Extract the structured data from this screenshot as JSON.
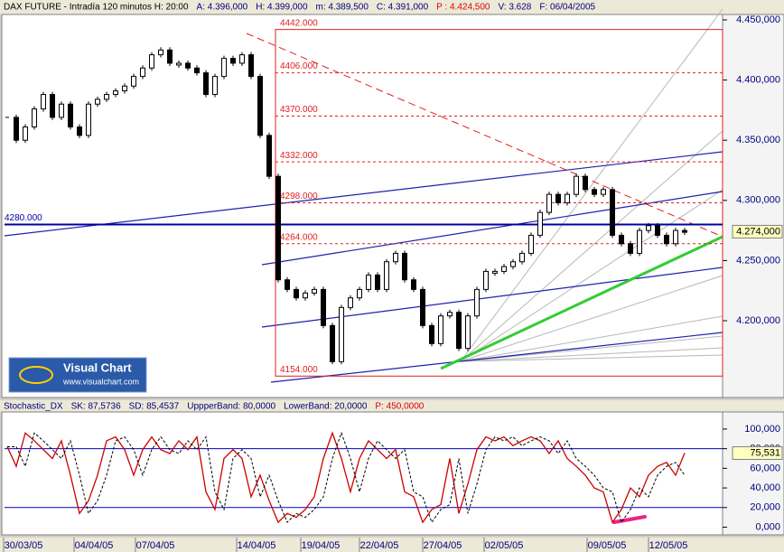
{
  "chart_data": [
    {
      "type": "candlestick",
      "header": [
        {
          "text": "DAX FUTURE - Intradía 120 minutos H: 20:00",
          "color": "#000000"
        },
        {
          "text": "A: 4.396,000",
          "color": "#000080"
        },
        {
          "text": "H: 4.399,000",
          "color": "#000080"
        },
        {
          "text": "m: 4.389,500",
          "color": "#000080"
        },
        {
          "text": "C: 4.391,000",
          "color": "#000080"
        },
        {
          "text": "P : 4.424,500",
          "color": "#e00000"
        },
        {
          "text": "V: 3.628",
          "color": "#000080"
        },
        {
          "text": "F: 06/04/2005",
          "color": "#000080"
        }
      ],
      "color": "#000000",
      "values": [
        4369000,
        4350000,
        4361000,
        4376000,
        4388000,
        4369000,
        4380000,
        4361000,
        4354000,
        4380000,
        4384000,
        4388000,
        4391000,
        4395000,
        4403000,
        4410000,
        4421000,
        4425000,
        4414000,
        4414000,
        4410000,
        4406000,
        4388000,
        4403000,
        4418000,
        4414000,
        4421000,
        4403000,
        4354000,
        4320000,
        4234000,
        4226000,
        4219000,
        4223000,
        4226000,
        4196000,
        4166000,
        4211000,
        4219000,
        4226000,
        4238000,
        4226000,
        4249000,
        4256000,
        4234000,
        4226000,
        4196000,
        4181000,
        4204000,
        4207000,
        4177000,
        4204000,
        4226000,
        4241000,
        4241000,
        4245000,
        4249000,
        4256000,
        4271000,
        4290000,
        4305000,
        4298000,
        4305000,
        4320000,
        4309000,
        4305000,
        4309000,
        4271000,
        4264000,
        4256000,
        4275000,
        4279000,
        4271000,
        4264000,
        4275000,
        4274000
      ],
      "ylim": [
        4136200,
        4454500
      ],
      "yticks": [
        {
          "value": 4450000,
          "label": "4.450,000"
        },
        {
          "value": 4400000,
          "label": "4.400,000"
        },
        {
          "value": 4350000,
          "label": "4.350,000"
        },
        {
          "value": 4300000,
          "label": "4.300,000"
        },
        {
          "value": 4250000,
          "label": "4.250,000"
        },
        {
          "value": 4200000,
          "label": "4.200,000"
        }
      ],
      "levels": [
        {
          "value": 4442000,
          "label": "4442.000"
        },
        {
          "value": 4406000,
          "label": "4406.000"
        },
        {
          "value": 4370000,
          "label": "4370.000"
        },
        {
          "value": 4332000,
          "label": "4332.000"
        },
        {
          "value": 4298000,
          "label": "4298.000"
        },
        {
          "value": 4264000,
          "label": "4264.000"
        },
        {
          "value": 4154000,
          "label": "4154.000"
        }
      ],
      "level_color": "#e02020",
      "hline": {
        "value": 4280000,
        "label": "4280.000",
        "color": "#0000a0"
      },
      "last": {
        "value": 4274000,
        "label": "4.274,000"
      },
      "logo": [
        "Visual Chart",
        "www.visualchart.com"
      ]
    },
    {
      "type": "line",
      "header": [
        {
          "text": "Stochastic_DX",
          "color": "#000080"
        },
        {
          "text": "SK: 87,5736",
          "color": "#000080"
        },
        {
          "text": "SD: 85,4537",
          "color": "#000080"
        },
        {
          "text": "UppperBand: 80,0000",
          "color": "#000080"
        },
        {
          "text": "LowerBand: 20,0000",
          "color": "#000080"
        },
        {
          "text": "P: 450,0000",
          "color": "#e00000"
        }
      ],
      "series": [
        {
          "name": "SK",
          "color": "#cc0000",
          "values": [
            82,
            62,
            96,
            88,
            79,
            70,
            88,
            53,
            14,
            27,
            53,
            88,
            92,
            79,
            53,
            79,
            92,
            79,
            75,
            88,
            79,
            92,
            36,
            18,
            70,
            79,
            70,
            31,
            53,
            27,
            5,
            14,
            10,
            18,
            31,
            70,
            96,
            70,
            36,
            70,
            88,
            79,
            70,
            79,
            36,
            31,
            5,
            18,
            23,
            70,
            14,
            44,
            79,
            92,
            88,
            92,
            83,
            88,
            92,
            88,
            75,
            88,
            70,
            62,
            53,
            40,
            36,
            5,
            18,
            40,
            31,
            53,
            62,
            66,
            53,
            75.5
          ]
        },
        {
          "name": "SD",
          "color": "#000000",
          "values": [
            82,
            82,
            62,
            96,
            88,
            79,
            70,
            88,
            53,
            14,
            27,
            53,
            88,
            92,
            79,
            53,
            79,
            92,
            79,
            75,
            88,
            79,
            92,
            36,
            18,
            70,
            79,
            70,
            31,
            53,
            27,
            5,
            14,
            10,
            18,
            31,
            70,
            96,
            70,
            36,
            70,
            88,
            79,
            70,
            79,
            36,
            31,
            5,
            18,
            23,
            70,
            14,
            44,
            79,
            92,
            88,
            92,
            83,
            88,
            92,
            88,
            75,
            88,
            70,
            62,
            53,
            40,
            36,
            5,
            18,
            40,
            31,
            53,
            62,
            66,
            53
          ]
        }
      ],
      "ylim": [
        -7.8,
        117.4
      ],
      "yticks": [
        {
          "value": 100,
          "label": "100,000"
        },
        {
          "value": 80,
          "label": "80,000"
        },
        {
          "value": 60,
          "label": "60,000"
        },
        {
          "value": 40,
          "label": "40,000"
        },
        {
          "value": 20,
          "label": "20,000"
        },
        {
          "value": 0,
          "label": "0,000"
        }
      ],
      "bands": [
        80,
        20
      ],
      "band_color": "#0000c0",
      "last": {
        "value": 75.5,
        "label": "75,531"
      },
      "xticks": [
        {
          "value": 1.8,
          "label": "30/03/05"
        },
        {
          "value": 9.6,
          "label": "04/04/05"
        },
        {
          "value": 16.4,
          "label": "07/04/05"
        },
        {
          "value": 27.6,
          "label": "14/04/05"
        },
        {
          "value": 34.7,
          "label": "19/04/05"
        },
        {
          "value": 41.2,
          "label": "22/04/05"
        },
        {
          "value": 48.2,
          "label": "27/04/05"
        },
        {
          "value": 55,
          "label": "02/05/05"
        },
        {
          "value": 66.4,
          "label": "09/05/05"
        },
        {
          "value": 73.2,
          "label": "12/05/05"
        }
      ]
    }
  ]
}
